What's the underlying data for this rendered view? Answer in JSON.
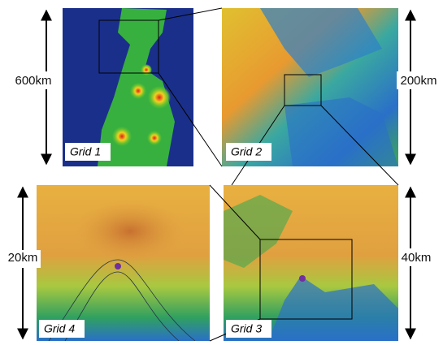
{
  "panels": [
    {
      "label": "Grid 1",
      "scale": "600km"
    },
    {
      "label": "Grid 2",
      "scale": "200km"
    },
    {
      "label": "Grid 3",
      "scale": "40km"
    },
    {
      "label": "Grid 4",
      "scale": "20km"
    }
  ]
}
